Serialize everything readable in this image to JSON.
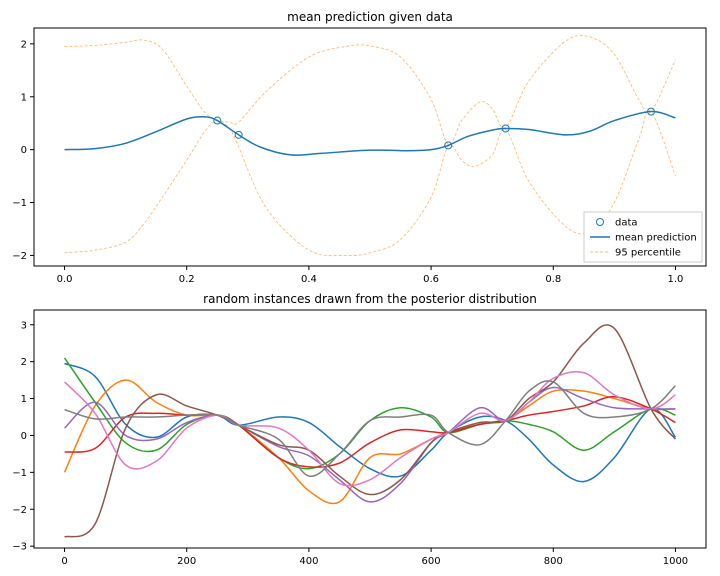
{
  "chart_data": [
    {
      "type": "line",
      "title": "mean prediction given data",
      "xlim": [
        -0.05,
        1.05
      ],
      "ylim": [
        -2.2,
        2.3
      ],
      "xticks": [
        0.0,
        0.2,
        0.4,
        0.6,
        0.8,
        1.0
      ],
      "xtick_labels": [
        "0.0",
        "0.2",
        "0.4",
        "0.6",
        "0.8",
        "1.0"
      ],
      "yticks": [
        -2,
        -1,
        0,
        1,
        2
      ],
      "ytick_labels": [
        "−2",
        "−1",
        "0",
        "1",
        "2"
      ],
      "grid": false,
      "legend_position": "bottom-right",
      "colors": {
        "data": "#1f77b4",
        "mean": "#1f77b4",
        "percentile": "#ffbb78"
      },
      "legend": [
        "data",
        "mean prediction",
        "95 percentile"
      ],
      "data_points": {
        "name": "data",
        "x": [
          0.25,
          0.285,
          0.628,
          0.722,
          0.96
        ],
        "y": [
          0.55,
          0.28,
          0.08,
          0.4,
          0.72
        ]
      },
      "mean": {
        "name": "mean prediction",
        "x": [
          0.0,
          0.05,
          0.1,
          0.15,
          0.2,
          0.23,
          0.25,
          0.285,
          0.32,
          0.37,
          0.42,
          0.5,
          0.56,
          0.6,
          0.628,
          0.66,
          0.7,
          0.722,
          0.76,
          0.82,
          0.86,
          0.9,
          0.96,
          1.0
        ],
        "y": [
          0.0,
          0.02,
          0.12,
          0.34,
          0.58,
          0.62,
          0.55,
          0.28,
          0.05,
          -0.1,
          -0.07,
          -0.01,
          -0.02,
          0.0,
          0.08,
          0.25,
          0.37,
          0.4,
          0.38,
          0.28,
          0.35,
          0.55,
          0.72,
          0.6
        ]
      },
      "upper_95": {
        "name": "95 percentile",
        "x": [
          0.0,
          0.05,
          0.1,
          0.13,
          0.16,
          0.2,
          0.23,
          0.25,
          0.27,
          0.285,
          0.33,
          0.4,
          0.46,
          0.5,
          0.55,
          0.6,
          0.628,
          0.65,
          0.68,
          0.7,
          0.722,
          0.76,
          0.82,
          0.86,
          0.9,
          0.94,
          0.96,
          1.0
        ],
        "y": [
          1.95,
          1.97,
          2.03,
          2.07,
          1.9,
          1.2,
          0.7,
          0.56,
          0.52,
          0.52,
          1.1,
          1.75,
          1.95,
          1.96,
          1.75,
          0.95,
          0.1,
          0.55,
          0.9,
          0.78,
          0.42,
          1.3,
          2.05,
          2.13,
          1.8,
          0.95,
          0.72,
          1.7
        ]
      },
      "lower_95": {
        "name": "95 percentile",
        "x": [
          0.0,
          0.05,
          0.1,
          0.13,
          0.16,
          0.2,
          0.23,
          0.25,
          0.27,
          0.285,
          0.33,
          0.4,
          0.46,
          0.5,
          0.55,
          0.6,
          0.628,
          0.65,
          0.67,
          0.7,
          0.722,
          0.76,
          0.82,
          0.86,
          0.9,
          0.94,
          0.96,
          1.0
        ],
        "y": [
          -1.95,
          -1.9,
          -1.75,
          -1.4,
          -0.9,
          -0.2,
          0.35,
          0.55,
          0.4,
          0.05,
          -1.1,
          -1.9,
          -2.0,
          -1.95,
          -1.7,
          -0.9,
          0.06,
          -0.2,
          -0.32,
          -0.1,
          0.38,
          -0.6,
          -1.45,
          -1.55,
          -1.0,
          0.2,
          0.72,
          -0.5
        ]
      }
    },
    {
      "type": "line",
      "title": "random instances drawn from the posterior distribution",
      "xlim": [
        -50,
        1050
      ],
      "ylim": [
        -3.05,
        3.4
      ],
      "xticks": [
        0,
        200,
        400,
        600,
        800,
        1000
      ],
      "xtick_labels": [
        "0",
        "200",
        "400",
        "600",
        "800",
        "1000"
      ],
      "yticks": [
        -3,
        -2,
        -1,
        0,
        1,
        2,
        3
      ],
      "ytick_labels": [
        "−3",
        "−2",
        "−1",
        "0",
        "1",
        "2",
        "3"
      ],
      "grid": false,
      "x": [
        0,
        50,
        100,
        150,
        200,
        250,
        285,
        350,
        400,
        450,
        500,
        550,
        600,
        628,
        680,
        722,
        760,
        800,
        850,
        900,
        960,
        1000
      ],
      "series": [
        {
          "color": "#1f77b4",
          "values": [
            1.95,
            1.6,
            0.3,
            -0.05,
            0.5,
            0.55,
            0.28,
            0.5,
            0.35,
            -0.3,
            -0.9,
            -1.1,
            -0.4,
            0.08,
            0.5,
            0.4,
            -0.1,
            -0.8,
            -1.25,
            -0.6,
            0.72,
            -0.05
          ]
        },
        {
          "color": "#ff7f0e",
          "values": [
            -1.0,
            0.8,
            1.5,
            0.9,
            0.55,
            0.55,
            0.28,
            -0.6,
            -1.5,
            -1.8,
            -0.6,
            -0.5,
            -0.1,
            0.08,
            0.3,
            0.4,
            0.8,
            1.2,
            1.2,
            1.0,
            0.72,
            0.72
          ]
        },
        {
          "color": "#2ca02c",
          "values": [
            2.1,
            0.9,
            -0.2,
            -0.4,
            0.3,
            0.55,
            0.28,
            -0.6,
            -0.9,
            -0.5,
            0.4,
            0.75,
            0.5,
            0.08,
            0.3,
            0.4,
            0.3,
            0.1,
            -0.4,
            0.1,
            0.72,
            0.55
          ]
        },
        {
          "color": "#d62728",
          "values": [
            -0.45,
            -0.35,
            0.5,
            0.6,
            0.55,
            0.55,
            0.28,
            -0.6,
            -0.85,
            -0.75,
            -0.2,
            0.15,
            0.1,
            0.08,
            0.3,
            0.4,
            0.55,
            0.65,
            0.8,
            1.05,
            0.72,
            0.35
          ]
        },
        {
          "color": "#9467bd",
          "values": [
            0.2,
            0.9,
            0.0,
            -0.1,
            0.35,
            0.55,
            0.28,
            -0.3,
            -0.55,
            -1.2,
            -1.8,
            -1.3,
            -0.2,
            0.08,
            0.75,
            0.4,
            0.9,
            1.3,
            1.0,
            0.75,
            0.72,
            0.72
          ]
        },
        {
          "color": "#8c564b",
          "values": [
            -2.75,
            -2.4,
            0.2,
            1.1,
            0.8,
            0.55,
            0.28,
            -0.25,
            -0.4,
            -1.1,
            -1.6,
            -1.2,
            -0.2,
            0.08,
            0.35,
            0.4,
            1.0,
            1.45,
            2.5,
            2.9,
            0.72,
            -0.1
          ]
        },
        {
          "color": "#e377c2",
          "values": [
            1.45,
            0.6,
            -0.8,
            -0.7,
            0.2,
            0.55,
            0.28,
            0.2,
            -0.4,
            -1.3,
            -1.2,
            -0.6,
            -0.1,
            0.08,
            0.6,
            0.4,
            0.9,
            1.55,
            1.7,
            1.1,
            0.72,
            1.1
          ]
        },
        {
          "color": "#7f7f7f",
          "values": [
            0.7,
            0.45,
            0.5,
            0.5,
            0.55,
            0.55,
            0.28,
            -0.1,
            -1.1,
            -0.5,
            0.4,
            0.5,
            0.55,
            0.08,
            -0.25,
            0.4,
            1.2,
            1.45,
            0.6,
            0.5,
            0.72,
            1.35
          ]
        }
      ]
    }
  ]
}
